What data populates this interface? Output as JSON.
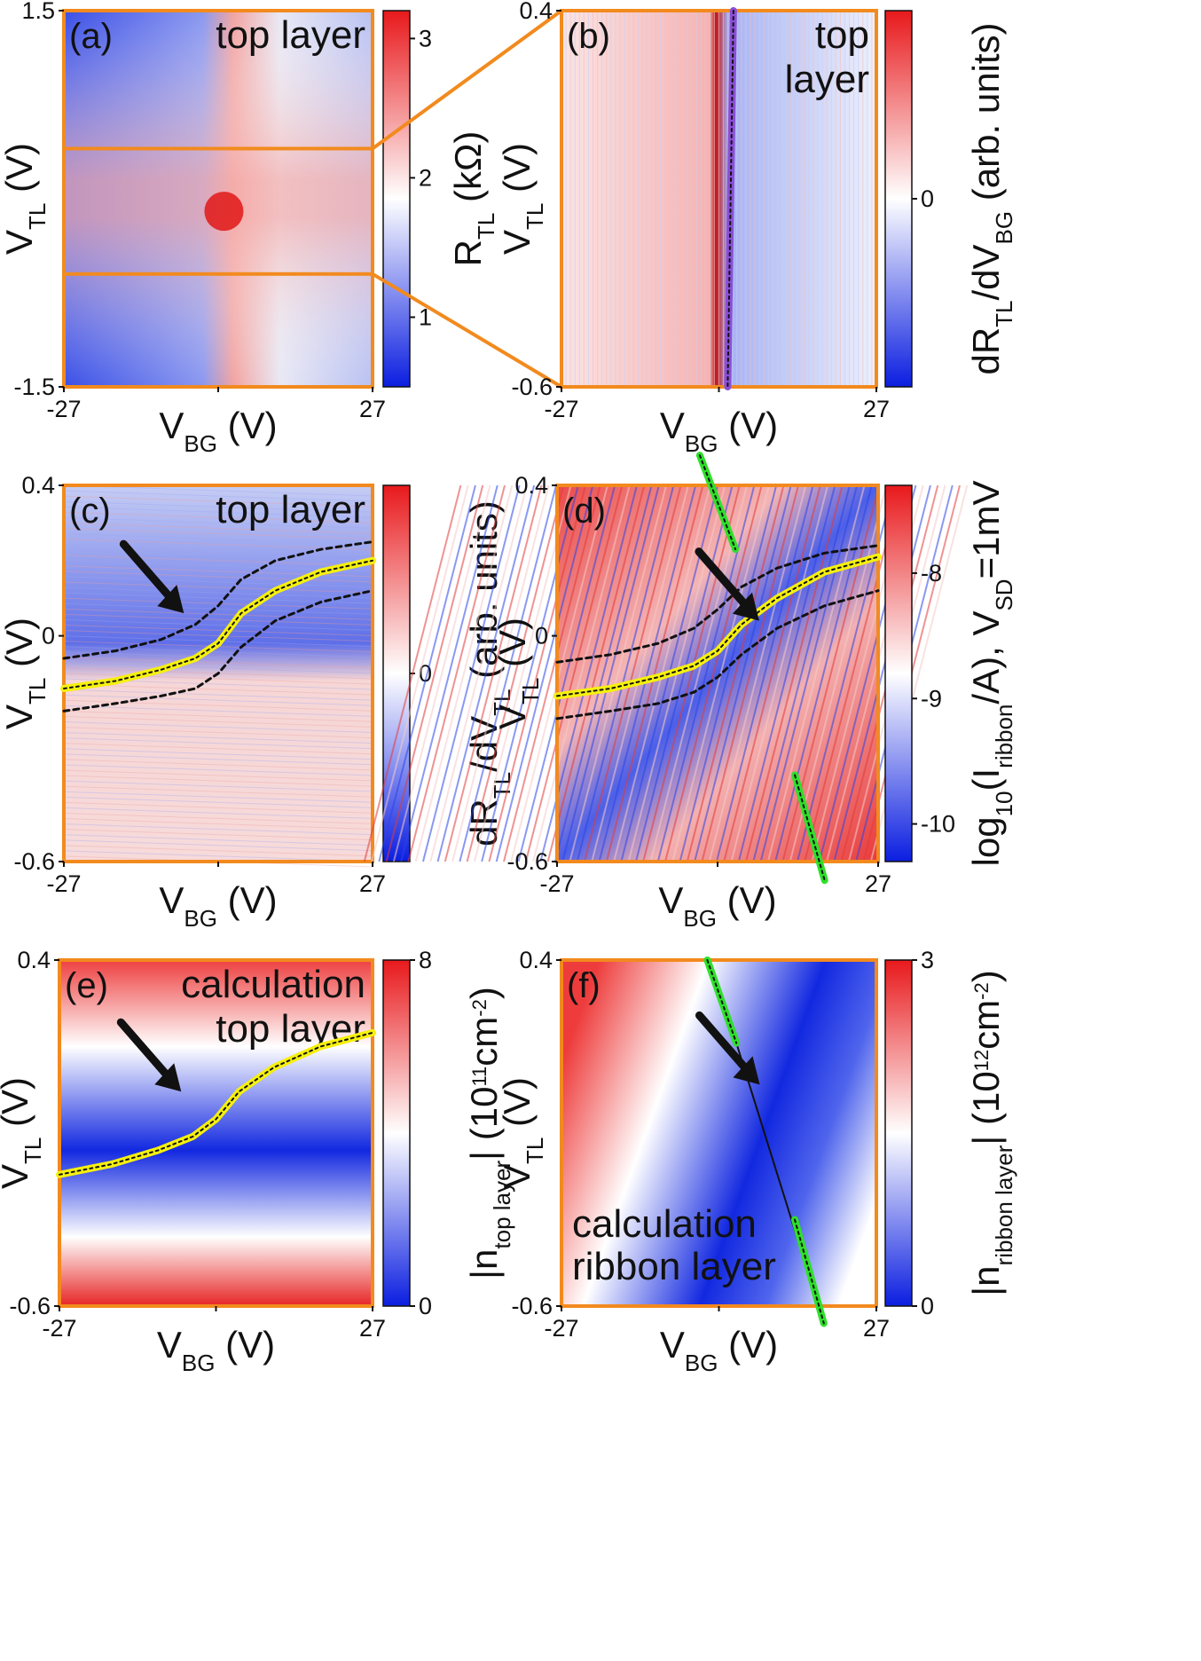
{
  "colors": {
    "frame": "#f28a1e",
    "cmap_low": "#0b1ee0",
    "cmap_mid": "#ffffff",
    "cmap_high": "#e8191c",
    "yellow_trace": "#f6f00e",
    "green_trace": "#2ee02a",
    "purple_trace": "#8a4fd6",
    "arrow": "#111111"
  },
  "chart_data": [
    {
      "panel": "(a)",
      "type": "heatmap",
      "annotation": "top layer",
      "xlabel": {
        "main": "V",
        "sub": "BG",
        "unit": " (V)"
      },
      "ylabel": {
        "main": "V",
        "sub": "TL",
        "unit": " (V)"
      },
      "x_ticks": [
        "-27",
        "27"
      ],
      "y_ticks": [
        "1.5",
        "-1.5"
      ],
      "xlim": [
        -27,
        27
      ],
      "ylim": [
        -1.5,
        1.5
      ],
      "colorbar": {
        "label_main": "R",
        "label_sub": "TL",
        "label_unit": " (kΩ)",
        "ticks": [
          "1",
          "2",
          "3"
        ],
        "range": [
          0.5,
          3.2
        ]
      },
      "zoom_box": {
        "x": [
          -27,
          27
        ],
        "y": [
          -0.6,
          0.4
        ]
      }
    },
    {
      "panel": "(b)",
      "type": "heatmap",
      "annotation": [
        "top",
        "layer"
      ],
      "xlabel": {
        "main": "V",
        "sub": "BG",
        "unit": " (V)"
      },
      "ylabel": {
        "main": "V",
        "sub": "TL",
        "unit": " (V)"
      },
      "x_ticks": [
        "-27",
        "27"
      ],
      "y_ticks": [
        "0.4",
        "-0.6"
      ],
      "xlim": [
        -27,
        27
      ],
      "ylim": [
        -0.6,
        0.4
      ],
      "colorbar": {
        "label_main": "dR",
        "label_sub1": "TL",
        "label_mid": "/dV",
        "label_sub2": "BG",
        "label_unit": " (arb. units)",
        "ticks": [
          "0"
        ]
      },
      "purple_line": {
        "x": [
          2.5,
          1.5
        ],
        "y": [
          0.4,
          -0.6
        ]
      }
    },
    {
      "panel": "(c)",
      "type": "heatmap",
      "annotation": "top layer",
      "xlabel": {
        "main": "V",
        "sub": "BG",
        "unit": " (V)"
      },
      "ylabel": {
        "main": "V",
        "sub": "TL",
        "unit": " (V)"
      },
      "x_ticks": [
        "-27",
        "27"
      ],
      "y_ticks": [
        "0.4",
        "0",
        "-0.6"
      ],
      "xlim": [
        -27,
        27
      ],
      "ylim": [
        -0.6,
        0.4
      ],
      "colorbar": {
        "label_main": "dR",
        "label_sub1": "TL",
        "label_mid": "/dV",
        "label_sub2": "TL",
        "label_unit": " (arb. units)",
        "ticks": [
          "0"
        ]
      },
      "yellow_curve": {
        "x": [
          -27,
          -18,
          -10,
          -4,
          0,
          4,
          10,
          18,
          27
        ],
        "y": [
          -0.14,
          -0.12,
          -0.09,
          -0.06,
          -0.02,
          0.06,
          0.12,
          0.17,
          0.2
        ]
      },
      "dashed_upper": {
        "x": [
          -27,
          -18,
          -10,
          -4,
          0,
          4,
          10,
          18,
          27
        ],
        "y": [
          -0.06,
          -0.04,
          -0.01,
          0.03,
          0.08,
          0.15,
          0.2,
          0.23,
          0.25
        ]
      },
      "dashed_lower": {
        "x": [
          -27,
          -18,
          -10,
          -4,
          0,
          4,
          10,
          18,
          27
        ],
        "y": [
          -0.2,
          -0.18,
          -0.16,
          -0.14,
          -0.1,
          -0.03,
          0.04,
          0.09,
          0.12
        ]
      },
      "arrow_tip": {
        "x": -6,
        "y": 0.06
      }
    },
    {
      "panel": "(d)",
      "type": "heatmap",
      "xlabel": {
        "main": "V",
        "sub": "BG",
        "unit": " (V)"
      },
      "ylabel": {
        "main": "V",
        "sub": "TL",
        "unit": " (V)"
      },
      "x_ticks": [
        "-27",
        "27"
      ],
      "y_ticks": [
        "0.4",
        "0",
        "-0.6"
      ],
      "xlim": [
        -27,
        27
      ],
      "ylim": [
        -0.6,
        0.4
      ],
      "colorbar": {
        "label_pre": "log",
        "label_sub1": "10",
        "label_mid": "(I",
        "label_sub2": "ribbon",
        "label_post": "/A),  V",
        "label_sub3": "SD",
        "label_end": "=1mV",
        "ticks": [
          "-8",
          "-9",
          "-10"
        ],
        "range": [
          -10.3,
          -7.3
        ]
      },
      "yellow_curve": {
        "x": [
          -27,
          -18,
          -10,
          -4,
          0,
          4,
          10,
          18,
          27
        ],
        "y": [
          -0.16,
          -0.14,
          -0.11,
          -0.08,
          -0.04,
          0.03,
          0.1,
          0.17,
          0.21
        ]
      },
      "dashed_upper": {
        "x": [
          -27,
          -18,
          -10,
          -4,
          0,
          4,
          10,
          18,
          27
        ],
        "y": [
          -0.07,
          -0.05,
          -0.02,
          0.02,
          0.07,
          0.13,
          0.18,
          0.22,
          0.24
        ]
      },
      "dashed_lower": {
        "x": [
          -27,
          -18,
          -10,
          -4,
          0,
          4,
          10,
          18,
          27
        ],
        "y": [
          -0.22,
          -0.2,
          -0.18,
          -0.15,
          -0.11,
          -0.05,
          0.02,
          0.08,
          0.12
        ]
      },
      "green_top": {
        "x": [
          -3,
          3
        ],
        "y": [
          0.48,
          0.23
        ]
      },
      "green_bottom": {
        "x": [
          13,
          18
        ],
        "y": [
          -0.37,
          -0.65
        ]
      },
      "arrow_tip": {
        "x": 7,
        "y": 0.04
      }
    },
    {
      "panel": "(e)",
      "type": "heatmap",
      "annotation": [
        "calculation",
        "top layer"
      ],
      "xlabel": {
        "main": "V",
        "sub": "BG",
        "unit": " (V)"
      },
      "ylabel": {
        "main": "V",
        "sub": "TL",
        "unit": " (V)"
      },
      "x_ticks": [
        "-27",
        "27"
      ],
      "y_ticks": [
        "0.4",
        "-0.6"
      ],
      "xlim": [
        -27,
        27
      ],
      "ylim": [
        -0.6,
        0.4
      ],
      "colorbar": {
        "label_pre": "|n",
        "label_sub": "top layer",
        "label_post": "|  (10",
        "label_sup": "11",
        "label_mid": "cm",
        "label_sup2": "-2",
        "label_end": ")",
        "ticks": [
          "8",
          "0"
        ],
        "range": [
          0,
          8
        ]
      },
      "yellow_curve": {
        "x": [
          -27,
          -18,
          -10,
          -4,
          0,
          4,
          10,
          18,
          27
        ],
        "y": [
          -0.22,
          -0.19,
          -0.15,
          -0.11,
          -0.06,
          0.02,
          0.09,
          0.15,
          0.19
        ]
      },
      "arrow_tip": {
        "x": -6,
        "y": 0.02
      }
    },
    {
      "panel": "(f)",
      "type": "heatmap",
      "annotation": [
        "calculation",
        "ribbon layer"
      ],
      "xlabel": {
        "main": "V",
        "sub": "BG",
        "unit": " (V)"
      },
      "ylabel": {
        "main": "V",
        "sub": "TL",
        "unit": " (V)"
      },
      "x_ticks": [
        "-27",
        "27"
      ],
      "y_ticks": [
        "0.4",
        "-0.6"
      ],
      "xlim": [
        -27,
        27
      ],
      "ylim": [
        -0.6,
        0.4
      ],
      "colorbar": {
        "label_pre": "|n",
        "label_sub": "ribbon layer",
        "label_post": "|  (10",
        "label_sup": "12",
        "label_mid": "cm",
        "label_sup2": "-2",
        "label_end": ")",
        "ticks": [
          "3",
          "0"
        ],
        "range": [
          0,
          3
        ]
      },
      "green_top": {
        "x": [
          -2,
          3
        ],
        "y": [
          0.4,
          0.16
        ]
      },
      "green_bottom": {
        "x": [
          13,
          18
        ],
        "y": [
          -0.35,
          -0.65
        ]
      },
      "minimum_line": {
        "x": [
          3,
          18
        ],
        "y": [
          0.16,
          -0.65
        ]
      },
      "arrow_tip": {
        "x": 7,
        "y": 0.04
      }
    }
  ]
}
